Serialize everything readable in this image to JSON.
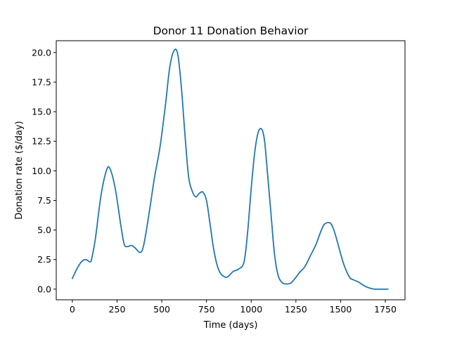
{
  "chart_data": {
    "type": "line",
    "title": "Donor 11 Donation Behavior",
    "xlabel": "Time (days)",
    "ylabel": "Donation rate ($/day)",
    "xlim": [
      -90,
      1860
    ],
    "ylim": [
      -0.9,
      21.0
    ],
    "xticks": [
      0,
      250,
      500,
      750,
      1000,
      1250,
      1500,
      1750
    ],
    "xtick_labels": [
      "0",
      "250",
      "500",
      "750",
      "1000",
      "1250",
      "1500",
      "1750"
    ],
    "yticks": [
      0.0,
      2.5,
      5.0,
      7.5,
      10.0,
      12.5,
      15.0,
      17.5,
      20.0
    ],
    "ytick_labels": [
      "0.0",
      "2.5",
      "5.0",
      "7.5",
      "10.0",
      "12.5",
      "15.0",
      "17.5",
      "20.0"
    ],
    "grid": false,
    "series": [
      {
        "color": "#1f77b4",
        "x": [
          0,
          25,
          50,
          75,
          100,
          110,
          130,
          160,
          190,
          210,
          240,
          270,
          290,
          310,
          330,
          350,
          380,
          400,
          430,
          460,
          490,
          520,
          545,
          570,
          590,
          610,
          630,
          650,
          670,
          690,
          710,
          730,
          750,
          770,
          790,
          810,
          830,
          860,
          880,
          900,
          930,
          960,
          980,
          1000,
          1020,
          1040,
          1060,
          1075,
          1090,
          1110,
          1130,
          1150,
          1170,
          1190,
          1220,
          1250,
          1270,
          1300,
          1330,
          1360,
          1390,
          1410,
          1440,
          1460,
          1480,
          1500,
          1520,
          1550,
          1570,
          1600,
          1630,
          1660,
          1690,
          1720,
          1765
        ],
        "y": [
          0.9,
          1.7,
          2.3,
          2.5,
          2.3,
          2.7,
          4.4,
          7.9,
          10.0,
          10.2,
          8.5,
          5.5,
          3.8,
          3.6,
          3.7,
          3.5,
          3.1,
          3.8,
          6.5,
          9.5,
          12.0,
          15.5,
          18.8,
          20.2,
          19.8,
          17.0,
          13.0,
          9.5,
          8.3,
          7.8,
          8.1,
          8.2,
          7.5,
          5.5,
          3.4,
          2.0,
          1.3,
          1.0,
          1.2,
          1.5,
          1.7,
          2.3,
          4.8,
          8.5,
          11.6,
          13.3,
          13.5,
          12.5,
          10.0,
          6.5,
          3.0,
          1.2,
          0.6,
          0.45,
          0.5,
          1.0,
          1.4,
          1.9,
          2.8,
          3.7,
          4.9,
          5.5,
          5.6,
          5.1,
          4.1,
          3.0,
          2.0,
          1.0,
          0.8,
          0.6,
          0.3,
          0.1,
          0.0,
          0.0,
          0.0
        ]
      }
    ]
  }
}
